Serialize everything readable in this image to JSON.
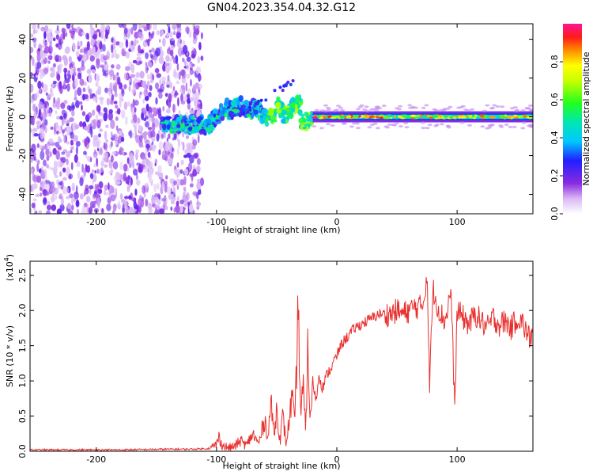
{
  "title": "GN04.2023.354.04.32.G12",
  "chart_data": [
    {
      "type": "heatmap",
      "xlabel": "Height of straight line (km)",
      "ylabel": "Frequency (Hz)",
      "xlim": [
        -255,
        163
      ],
      "ylim": [
        -50,
        48
      ],
      "xticks": [
        -200,
        -100,
        0,
        100
      ],
      "yticks": [
        -40,
        -20,
        0,
        20,
        40
      ],
      "colorbar": {
        "label": "Normalized spectral amplitude",
        "range": [
          0,
          1
        ],
        "ticks": [
          0.0,
          0.2,
          0.4,
          0.6,
          0.8
        ]
      },
      "features": {
        "noise_region_km": [
          -255,
          -120
        ],
        "transition_region_km": [
          -145,
          -20
        ],
        "steady_signal_km": [
          -20,
          163
        ],
        "steady_signal_freq_hz": 0
      }
    },
    {
      "type": "line",
      "xlabel": "Height of straight line (km)",
      "ylabel": "SNR (10 * v/v)",
      "y_multiplier": "(x10",
      "y_multiplier_exp": "4",
      "y_multiplier_close": ")",
      "xlim": [
        -255,
        163
      ],
      "ylim": [
        0,
        2.7
      ],
      "xticks": [
        -200,
        -100,
        0,
        100
      ],
      "yticks": [
        0.0,
        0.5,
        1.0,
        1.5,
        2.0,
        2.5
      ],
      "color": "#e8302e",
      "series": [
        {
          "x": [
            -255,
            -220,
            -180,
            -140,
            -120,
            -105,
            -100,
            -98,
            -95,
            -90,
            -85,
            -80,
            -75,
            -70,
            -65,
            -60,
            -57,
            -55,
            -52,
            -50,
            -47,
            -45,
            -42,
            -40,
            -37,
            -35,
            -32,
            -30,
            -28,
            -26,
            -24,
            -22,
            -20,
            -17,
            -15,
            -12,
            -10,
            -8,
            -6,
            -4,
            -2,
            0,
            2,
            5,
            10,
            15,
            20,
            25,
            30,
            35,
            40,
            45,
            50,
            55,
            60,
            65,
            70,
            73,
            75,
            77,
            80,
            85,
            90,
            95,
            98,
            100,
            105,
            110,
            115,
            120,
            125,
            130,
            135,
            140,
            145,
            150,
            155,
            160,
            163
          ],
          "y": [
            0.02,
            0.02,
            0.02,
            0.03,
            0.03,
            0.04,
            0.1,
            0.2,
            0.08,
            0.05,
            0.07,
            0.15,
            0.08,
            0.25,
            0.1,
            0.45,
            0.2,
            0.7,
            0.25,
            0.6,
            0.15,
            0.5,
            0.1,
            0.4,
            0.8,
            0.3,
            2.1,
            0.5,
            0.9,
            0.3,
            1.5,
            0.4,
            1.0,
            0.7,
            1.1,
            0.9,
            1.0,
            1.1,
            1.15,
            1.2,
            1.3,
            1.35,
            1.45,
            1.55,
            1.65,
            1.75,
            1.8,
            1.85,
            1.9,
            1.95,
            1.95,
            1.95,
            2.0,
            1.95,
            2.0,
            2.05,
            2.05,
            2.2,
            2.6,
            0.95,
            2.3,
            2.0,
            1.85,
            2.3,
            0.55,
            2.0,
            1.9,
            1.8,
            1.95,
            1.85,
            1.75,
            1.9,
            1.8,
            1.85,
            1.75,
            1.9,
            1.8,
            1.6,
            1.7
          ]
        }
      ]
    }
  ]
}
